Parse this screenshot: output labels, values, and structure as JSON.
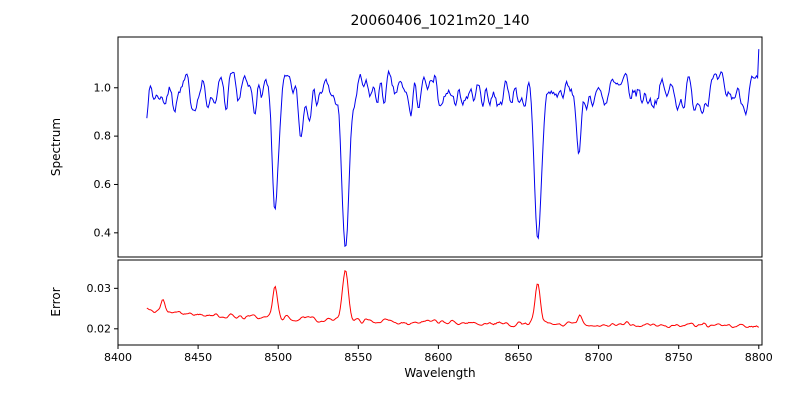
{
  "chart_data": {
    "type": "line",
    "title": "20060406_1021m20_140",
    "xlabel": "Wavelength",
    "xlim": [
      8400,
      8802
    ],
    "xticks": [
      8400,
      8450,
      8500,
      8550,
      8600,
      8650,
      8700,
      8750,
      8800
    ],
    "xtick_labels": [
      "8400",
      "8450",
      "8500",
      "8550",
      "8600",
      "8650",
      "8700",
      "8750",
      "8800"
    ],
    "background": "#ffffff",
    "axis_color": "#000000",
    "grid": false,
    "legend": false,
    "seed": 7,
    "panels": [
      {
        "ylabel": "Spectrum",
        "line_color": "#0000ee",
        "ylim": [
          0.3,
          1.21
        ],
        "yticks": [
          0.4,
          0.6,
          0.8,
          1.0
        ],
        "ytick_labels": [
          "0.4",
          "0.6",
          "0.8",
          "1.0"
        ],
        "series": {
          "name": "spectrum",
          "x_start": 8418,
          "x_end": 8800,
          "n_points": 520,
          "continuum": 0.975,
          "noise_std": 0.042,
          "absorption_lines": [
            {
              "center": 8468,
              "depth": 0.1,
              "sigma": 1.0
            },
            {
              "center": 8498,
              "depth": 0.51,
              "sigma": 1.8
            },
            {
              "center": 8514,
              "depth": 0.17,
              "sigma": 1.2
            },
            {
              "center": 8542,
              "depth": 0.65,
              "sigma": 2.3
            },
            {
              "center": 8583,
              "depth": 0.1,
              "sigma": 1.0
            },
            {
              "center": 8662,
              "depth": 0.62,
              "sigma": 2.2
            },
            {
              "center": 8688,
              "depth": 0.28,
              "sigma": 1.4
            }
          ],
          "edge_spike": {
            "x": 8800,
            "value": 1.16
          }
        }
      },
      {
        "ylabel": "Error",
        "line_color": "#ff0000",
        "ylim": [
          0.016,
          0.037
        ],
        "yticks": [
          0.02,
          0.03
        ],
        "ytick_labels": [
          "0.02",
          "0.03"
        ],
        "series": {
          "name": "error",
          "x_start": 8418,
          "x_end": 8800,
          "n_points": 520,
          "baseline_start": 0.0243,
          "baseline_end": 0.0204,
          "decay_scale": 150,
          "noise_std": 0.00032,
          "peaks": [
            {
              "center": 8428,
              "height": 0.0028,
              "sigma": 1.2
            },
            {
              "center": 8498,
              "height": 0.0075,
              "sigma": 1.5
            },
            {
              "center": 8542,
              "height": 0.0128,
              "sigma": 1.8
            },
            {
              "center": 8662,
              "height": 0.0098,
              "sigma": 1.6
            },
            {
              "center": 8688,
              "height": 0.0022,
              "sigma": 1.2
            }
          ]
        }
      }
    ]
  }
}
